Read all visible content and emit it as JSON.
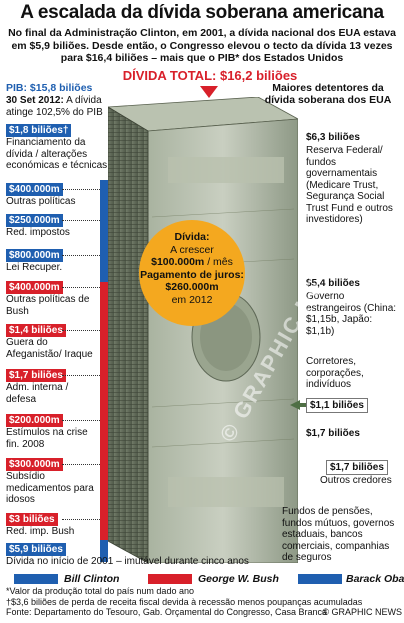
{
  "title": "A escalada da dívida soberana americana",
  "intro": "No final da Administração Clinton, em 2001, a dívida nacional dos EUA estava em $5,9 biliões. Desde então, o Congresso elevou o tecto da dívida 13 vezes para $16,4 biliões – mais que o PIB* dos Estados Unidos",
  "total_label": "DÍVIDA TOTAL:",
  "total_value": "$16,2 biliões",
  "pib": {
    "label": "PIB:",
    "value": "$15,8 biliões",
    "date": "30 Set 2012:",
    "text": "A dívida atinge 102,5% do PIB"
  },
  "left_items": [
    {
      "amount": "$1,8 biliões†",
      "label": "Financiamento da dívida / alterações económicas e técnicas",
      "color": "blue"
    },
    {
      "amount": "$400.000m",
      "label": "Outras políticas",
      "color": "blue"
    },
    {
      "amount": "$250.000m",
      "label": "Red. impostos",
      "color": "blue"
    },
    {
      "amount": "$800.000m",
      "label": "Lei Recuper.",
      "color": "blue"
    },
    {
      "amount": "$400.000m",
      "label": "Outras políticas de Bush",
      "color": "red"
    },
    {
      "amount": "$1,4 biliões",
      "label": "Guera do Afeganistão/ Iraque",
      "color": "red"
    },
    {
      "amount": "$1,7 biliões",
      "label": "Adm. interna / defesa",
      "color": "red"
    },
    {
      "amount": "$200.000m",
      "label": "Estímulos na crise fin. 2008",
      "color": "red"
    },
    {
      "amount": "$300.000m",
      "label": "Subsídio medicamentos para idosos",
      "color": "red"
    },
    {
      "amount": "$3 biliões",
      "label": "Red. imp. Bush",
      "color": "red"
    },
    {
      "amount": "$5,9 biliões",
      "label": "Dívida no início de 2001 – imutável durante cinco anos",
      "color": "blue"
    }
  ],
  "bubble": {
    "title": "Dívida:",
    "line1": "A crescer",
    "line2a": "$100.000m",
    "line2b": "/ mês",
    "line3": "Pagamento de juros:",
    "line4a": "$260.000m",
    "line4b": "em 2012"
  },
  "holders": {
    "heading": "Maiores detentores da dívida soberana dos EUA",
    "items": [
      {
        "amount": "$6,3 biliões",
        "text": "Reserva Federal/ fundos governamentais (Medicare Trust, Segurança Social Trust Fund e outros investidores)"
      },
      {
        "amount": "$5,4 biliões",
        "text": "Governo estrangeiros (China: $1,15b, Japão: $1,1b)"
      },
      {
        "amount": "$1,1 biliões",
        "text": "Corretores, corporações, indivíduos"
      },
      {
        "amount": "$1,7 biliões",
        "text": ""
      },
      {
        "amount": "$1,7 biliões",
        "text": "Outros credores"
      },
      {
        "amount": "",
        "text": "Fundos de pensões, fundos mútuos, governos estaduais, bancos comerciais, companhias de seguros"
      }
    ]
  },
  "legend": [
    {
      "name": "Bill Clinton",
      "color": "#1f5fb0"
    },
    {
      "name": "George W. Bush",
      "color": "#d8202a"
    },
    {
      "name": "Barack Obama",
      "color": "#1f5fb0"
    }
  ],
  "footnotes": {
    "note1": "*Valor da produção total do país num dado ano",
    "note2": "†$3,6 biliões de perda de receita fiscal devida à recessão menos poupanças acumuladas",
    "source": "Fonte: Departamento do Tesouro, Gab. Orçamental do Congresso, Casa Branca",
    "credit": "© GRAPHIC NEWS"
  },
  "colors": {
    "red": "#d8202a",
    "blue": "#1f5fb0",
    "orange": "#f4a81f",
    "green": "#4f6f45"
  }
}
